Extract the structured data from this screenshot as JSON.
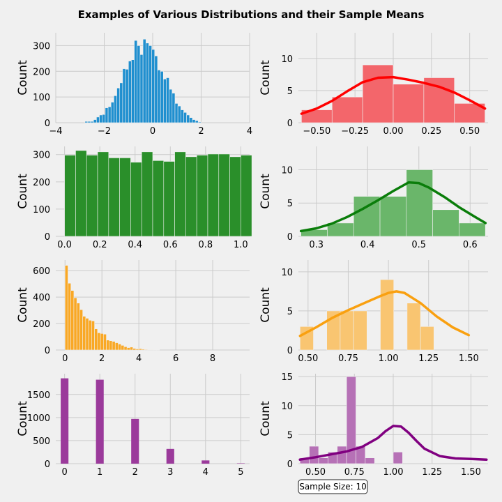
{
  "figure": {
    "title": "Examples of Various Distributions and their Sample Means",
    "annotation": "Sample Size: 10"
  },
  "chart_data": [
    {
      "id": "normal-hist",
      "type": "bar",
      "color": "#1f8fcf",
      "ylabel": "Count",
      "xlim": [
        -4,
        4
      ],
      "ylim": [
        0,
        350
      ],
      "xticks": [
        -4,
        -2,
        0,
        2,
        4
      ],
      "xtick_labels": [
        "−4",
        "−2",
        "0",
        "2",
        "4"
      ],
      "yticks": [
        0,
        100,
        200,
        300
      ],
      "ytick_labels": [
        "0",
        "100",
        "200",
        "300"
      ],
      "bins": {
        "start": -2.8,
        "width": 0.12,
        "values": [
          5,
          5,
          5,
          12,
          22,
          30,
          32,
          58,
          62,
          80,
          105,
          135,
          155,
          210,
          208,
          240,
          245,
          320,
          300,
          265,
          325,
          310,
          300,
          285,
          260,
          205,
          200,
          170,
          175,
          130,
          115,
          75,
          65,
          50,
          40,
          30,
          20,
          12,
          8,
          3
        ]
      },
      "kde": null
    },
    {
      "id": "normal-means",
      "type": "bar",
      "color": "#f3666b",
      "kde_color": "#ff0000",
      "ylabel": "Count",
      "xlim": [
        -0.62,
        0.62
      ],
      "ylim": [
        0,
        14
      ],
      "xticks": [
        -0.5,
        -0.25,
        0,
        0.25,
        0.5
      ],
      "xtick_labels": [
        "−0.50",
        "−0.25",
        "0.00",
        "0.25",
        "0.50"
      ],
      "yticks": [
        0,
        5,
        10
      ],
      "ytick_labels": [
        "0",
        "5",
        "10"
      ],
      "bins": {
        "start": -0.6,
        "width": 0.2,
        "values": [
          2,
          4,
          9,
          6,
          7,
          3
        ]
      },
      "kde": [
        [
          -0.6,
          1.4
        ],
        [
          -0.5,
          2.2
        ],
        [
          -0.4,
          3.4
        ],
        [
          -0.3,
          4.9
        ],
        [
          -0.2,
          6.3
        ],
        [
          -0.1,
          7.0
        ],
        [
          0.0,
          7.1
        ],
        [
          0.1,
          6.7
        ],
        [
          0.2,
          6.2
        ],
        [
          0.3,
          5.6
        ],
        [
          0.4,
          4.7
        ],
        [
          0.5,
          3.5
        ],
        [
          0.6,
          2.2
        ]
      ]
    },
    {
      "id": "uniform-hist",
      "type": "bar",
      "color": "#2a8f2a",
      "ylabel": "Count",
      "xlim": [
        -0.05,
        1.05
      ],
      "ylim": [
        0,
        330
      ],
      "xticks": [
        0,
        0.2,
        0.4,
        0.6,
        0.8,
        1.0
      ],
      "xtick_labels": [
        "0.0",
        "0.2",
        "0.4",
        "0.6",
        "0.8",
        "1.0"
      ],
      "yticks": [
        0,
        100,
        200,
        300
      ],
      "ytick_labels": [
        "0",
        "100",
        "200",
        "300"
      ],
      "bins": {
        "start": 0.0,
        "width": 0.0625,
        "values": [
          298,
          315,
          298,
          310,
          288,
          288,
          272,
          310,
          278,
          275,
          310,
          292,
          298,
          302,
          302,
          292,
          298
        ]
      },
      "kde": null
    },
    {
      "id": "uniform-means",
      "type": "bar",
      "color": "#6ab66a",
      "kde_color": "#0a7d0a",
      "ylabel": "Count",
      "xlim": [
        0.265,
        0.635
      ],
      "ylim": [
        0,
        13.5
      ],
      "xticks": [
        0.3,
        0.4,
        0.5,
        0.6
      ],
      "xtick_labels": [
        "0.3",
        "0.4",
        "0.5",
        "0.6"
      ],
      "yticks": [
        0,
        5,
        10
      ],
      "ytick_labels": [
        "0",
        "5",
        "10"
      ],
      "bins": {
        "start": 0.27,
        "width": 0.0514,
        "values": [
          1,
          2,
          6,
          6,
          10,
          4,
          2
        ]
      },
      "kde": [
        [
          0.27,
          0.8
        ],
        [
          0.3,
          1.2
        ],
        [
          0.33,
          1.9
        ],
        [
          0.36,
          2.9
        ],
        [
          0.39,
          4.1
        ],
        [
          0.42,
          5.4
        ],
        [
          0.45,
          6.8
        ],
        [
          0.48,
          8.1
        ],
        [
          0.5,
          8.0
        ],
        [
          0.52,
          7.3
        ],
        [
          0.55,
          5.9
        ],
        [
          0.58,
          4.3
        ],
        [
          0.61,
          2.9
        ],
        [
          0.63,
          2.0
        ]
      ]
    },
    {
      "id": "exponential-hist",
      "type": "bar",
      "color": "#f9a825",
      "ylabel": "Count",
      "xlim": [
        -0.5,
        10
      ],
      "ylim": [
        0,
        680
      ],
      "xticks": [
        0,
        2,
        4,
        6,
        8
      ],
      "xtick_labels": [
        "0",
        "2",
        "4",
        "6",
        "8"
      ],
      "yticks": [
        0,
        200,
        400,
        600
      ],
      "ytick_labels": [
        "0",
        "200",
        "400",
        "600"
      ],
      "bins": {
        "start": 0.0,
        "width": 0.16,
        "values": [
          640,
          505,
          450,
          395,
          355,
          305,
          255,
          240,
          225,
          220,
          160,
          130,
          125,
          120,
          75,
          70,
          65,
          55,
          45,
          35,
          25,
          18,
          22,
          12,
          8,
          10,
          6,
          4,
          3,
          3,
          2,
          2
        ]
      },
      "kde": null
    },
    {
      "id": "exponential-means",
      "type": "bar",
      "color": "#f9c571",
      "kde_color": "#f9a010",
      "ylabel": "Count",
      "xlim": [
        0.44,
        1.62
      ],
      "ylim": [
        0,
        11.5
      ],
      "xticks": [
        0.5,
        0.75,
        1.0,
        1.25,
        1.5
      ],
      "xtick_labels": [
        "0.50",
        "0.75",
        "1.00",
        "1.25",
        "1.50"
      ],
      "yticks": [
        0,
        5,
        10
      ],
      "ytick_labels": [
        "0",
        "5",
        "10"
      ],
      "bins": {
        "start": 0.45,
        "width": 0.0833,
        "values": [
          3,
          0,
          5,
          5,
          5,
          0,
          9,
          0,
          6,
          3
        ]
      },
      "kde": [
        [
          0.45,
          1.8
        ],
        [
          0.55,
          2.9
        ],
        [
          0.65,
          4.1
        ],
        [
          0.75,
          5.1
        ],
        [
          0.85,
          6.0
        ],
        [
          0.95,
          6.9
        ],
        [
          1.0,
          7.3
        ],
        [
          1.05,
          7.5
        ],
        [
          1.1,
          7.3
        ],
        [
          1.2,
          6.0
        ],
        [
          1.3,
          4.3
        ],
        [
          1.4,
          2.9
        ],
        [
          1.5,
          1.9
        ]
      ]
    },
    {
      "id": "poisson-hist",
      "type": "bar",
      "color": "#9b3a9b",
      "ylabel": "Count",
      "xlim": [
        -0.25,
        5.25
      ],
      "ylim": [
        0,
        1950
      ],
      "xticks": [
        0,
        1,
        2,
        3,
        4,
        5
      ],
      "xtick_labels": [
        "0",
        "1",
        "2",
        "3",
        "4",
        "5"
      ],
      "yticks": [
        0,
        500,
        1000,
        1500
      ],
      "ytick_labels": [
        "0",
        "500",
        "1000",
        "1500"
      ],
      "bars": [
        [
          0,
          1850
        ],
        [
          1,
          1820
        ],
        [
          2,
          970
        ],
        [
          3,
          320
        ],
        [
          4,
          70
        ],
        [
          5,
          8
        ]
      ],
      "bar_width": 0.22,
      "kde": null
    },
    {
      "id": "poisson-means",
      "type": "bar",
      "color": "#b671b6",
      "kde_color": "#800080",
      "ylabel": "Count",
      "xlim": [
        0.39,
        1.61
      ],
      "ylim": [
        0,
        15.5
      ],
      "xticks": [
        0.5,
        0.75,
        1.0,
        1.25,
        1.5
      ],
      "xtick_labels": [
        "0.50",
        "0.75",
        "1.00",
        "1.25",
        "1.50"
      ],
      "yticks": [
        0,
        5,
        10,
        15
      ],
      "ytick_labels": [
        "0",
        "5",
        "10",
        "15"
      ],
      "bins": {
        "start": 0.4,
        "width": 0.06,
        "values": [
          1,
          3,
          1,
          2,
          3,
          15,
          3,
          1,
          0,
          0,
          2
        ]
      },
      "kde": [
        [
          0.4,
          0.7
        ],
        [
          0.5,
          1.1
        ],
        [
          0.6,
          1.6
        ],
        [
          0.7,
          2.1
        ],
        [
          0.8,
          2.9
        ],
        [
          0.9,
          4.4
        ],
        [
          0.95,
          5.6
        ],
        [
          1.0,
          6.5
        ],
        [
          1.05,
          6.4
        ],
        [
          1.1,
          5.3
        ],
        [
          1.15,
          3.9
        ],
        [
          1.2,
          2.6
        ],
        [
          1.3,
          1.3
        ],
        [
          1.4,
          0.9
        ],
        [
          1.5,
          0.8
        ],
        [
          1.6,
          0.7
        ]
      ]
    }
  ]
}
